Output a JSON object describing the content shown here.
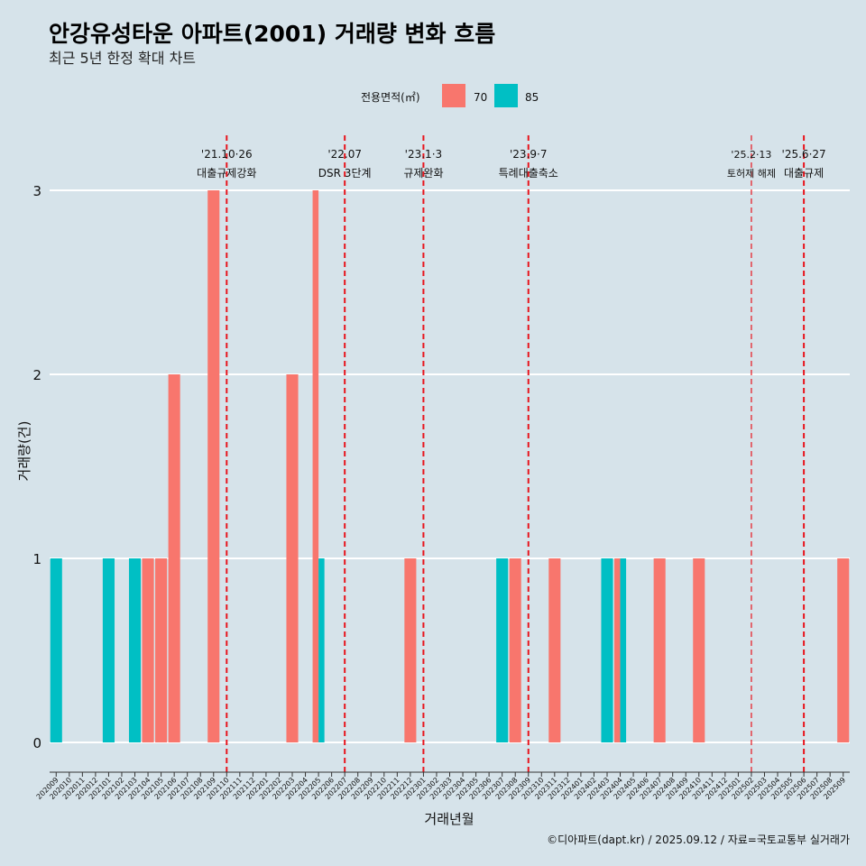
{
  "chart_data": {
    "type": "bar",
    "title": "안강유성타운 아파트(2001) 거래량 변화 흐름",
    "subtitle": "최근 5년 한정 확대 차트",
    "xlabel": "거래년월",
    "ylabel": "거래량(건)",
    "caption": "©디아파트(dapt.kr) / 2025.09.12 / 자료=국토교통부 실거래가",
    "ylim": [
      0,
      3
    ],
    "y_ticks": [
      0,
      1,
      2,
      3
    ],
    "legend": {
      "title": "전용면적(㎡)",
      "position": "top",
      "entries": [
        {
          "label": "70",
          "color": "#f8766d"
        },
        {
          "label": "85",
          "color": "#00bfc4"
        }
      ]
    },
    "categories": [
      "202009",
      "202010",
      "202011",
      "202012",
      "202101",
      "202102",
      "202103",
      "202104",
      "202105",
      "202106",
      "202107",
      "202108",
      "202109",
      "202110",
      "202111",
      "202112",
      "202201",
      "202202",
      "202203",
      "202204",
      "202205",
      "202206",
      "202207",
      "202208",
      "202209",
      "202210",
      "202211",
      "202212",
      "202301",
      "202302",
      "202303",
      "202304",
      "202305",
      "202306",
      "202307",
      "202308",
      "202309",
      "202310",
      "202311",
      "202312",
      "202401",
      "202402",
      "202403",
      "202404",
      "202405",
      "202406",
      "202407",
      "202408",
      "202409",
      "202410",
      "202411",
      "202412",
      "202501",
      "202502",
      "202503",
      "202504",
      "202505",
      "202506",
      "202507",
      "202508",
      "202509"
    ],
    "bars": [
      {
        "month": "202009",
        "segments": [
          {
            "area": "85",
            "value": 1
          }
        ]
      },
      {
        "month": "202101",
        "segments": [
          {
            "area": "85",
            "value": 1
          }
        ]
      },
      {
        "month": "202103",
        "segments": [
          {
            "area": "85",
            "value": 1
          }
        ]
      },
      {
        "month": "202104",
        "segments": [
          {
            "area": "70",
            "value": 1
          }
        ]
      },
      {
        "month": "202105",
        "segments": [
          {
            "area": "70",
            "value": 1
          }
        ]
      },
      {
        "month": "202106",
        "segments": [
          {
            "area": "70",
            "value": 2
          }
        ]
      },
      {
        "month": "202109",
        "segments": [
          {
            "area": "70",
            "value": 3
          }
        ]
      },
      {
        "month": "202203",
        "segments": [
          {
            "area": "70",
            "value": 2
          }
        ]
      },
      {
        "month": "202205",
        "segments": [
          {
            "area": "70",
            "value": 3
          },
          {
            "area": "85",
            "value": 1
          }
        ]
      },
      {
        "month": "202212",
        "segments": [
          {
            "area": "70",
            "value": 1
          }
        ]
      },
      {
        "month": "202307",
        "segments": [
          {
            "area": "85",
            "value": 1
          }
        ]
      },
      {
        "month": "202308",
        "segments": [
          {
            "area": "70",
            "value": 1
          }
        ]
      },
      {
        "month": "202311",
        "segments": [
          {
            "area": "70",
            "value": 1
          }
        ]
      },
      {
        "month": "202403",
        "segments": [
          {
            "area": "85",
            "value": 1
          }
        ]
      },
      {
        "month": "202404",
        "segments": [
          {
            "area": "70",
            "value": 1
          },
          {
            "area": "85",
            "value": 1
          }
        ]
      },
      {
        "month": "202407",
        "segments": [
          {
            "area": "70",
            "value": 1
          }
        ]
      },
      {
        "month": "202410",
        "segments": [
          {
            "area": "70",
            "value": 1
          }
        ]
      },
      {
        "month": "202509",
        "segments": [
          {
            "area": "70",
            "value": 1
          }
        ]
      }
    ],
    "events": [
      {
        "date": "'21.10·26",
        "label": "대출규제강화",
        "month": "202110",
        "x_offset": 0.0,
        "small": false
      },
      {
        "date": "'22.07",
        "label": "DSR 3단계",
        "month": "202207",
        "x_offset": 0.0,
        "small": false
      },
      {
        "date": "'23.1·3",
        "label": "규제완화",
        "month": "202301",
        "x_offset": 0.0,
        "small": false
      },
      {
        "date": "'23.9·7",
        "label": "특례대출축소",
        "month": "202309",
        "x_offset": 0.0,
        "small": false
      },
      {
        "date": "'25.2·13",
        "label": "토허제 해제",
        "month": "202502",
        "x_offset": 0.0,
        "small": true
      },
      {
        "date": "'25.6·27",
        "label": "대출규제",
        "month": "202506",
        "x_offset": 0.0,
        "small": false
      }
    ],
    "grid": true
  }
}
